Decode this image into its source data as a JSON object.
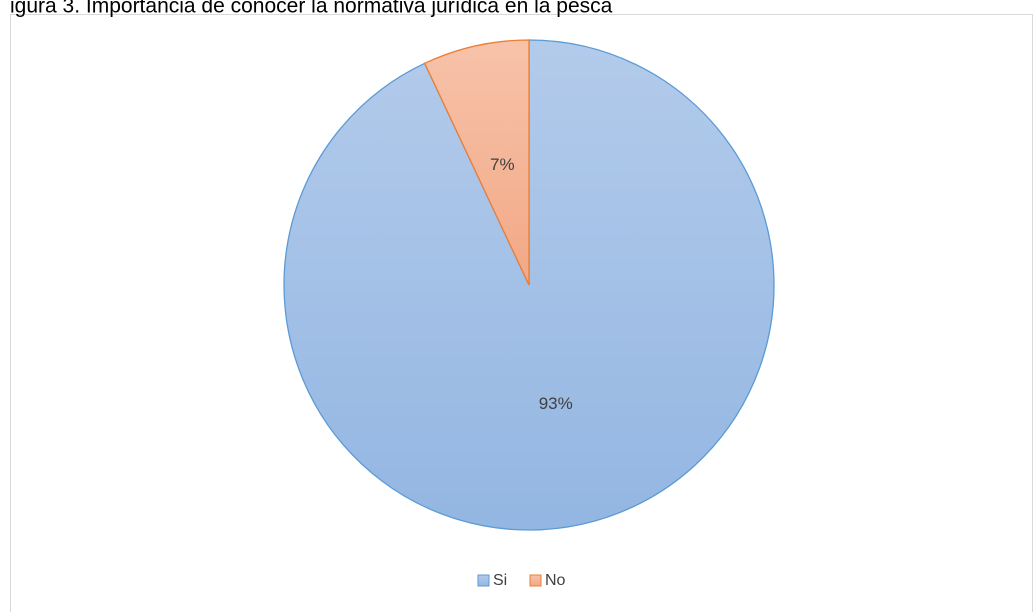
{
  "chart_data": {
    "type": "pie",
    "title": "igura 3. Importancia de conocer la normativa jurídica en la pesca",
    "categories": [
      "Si",
      "No"
    ],
    "values": [
      93,
      7
    ],
    "value_labels": [
      "93%",
      "7%"
    ],
    "colors": [
      "#a3c0e6",
      "#f4b296"
    ],
    "edge_colors": [
      "#5b9bd5",
      "#ed7d31"
    ],
    "legend": "bottom"
  }
}
